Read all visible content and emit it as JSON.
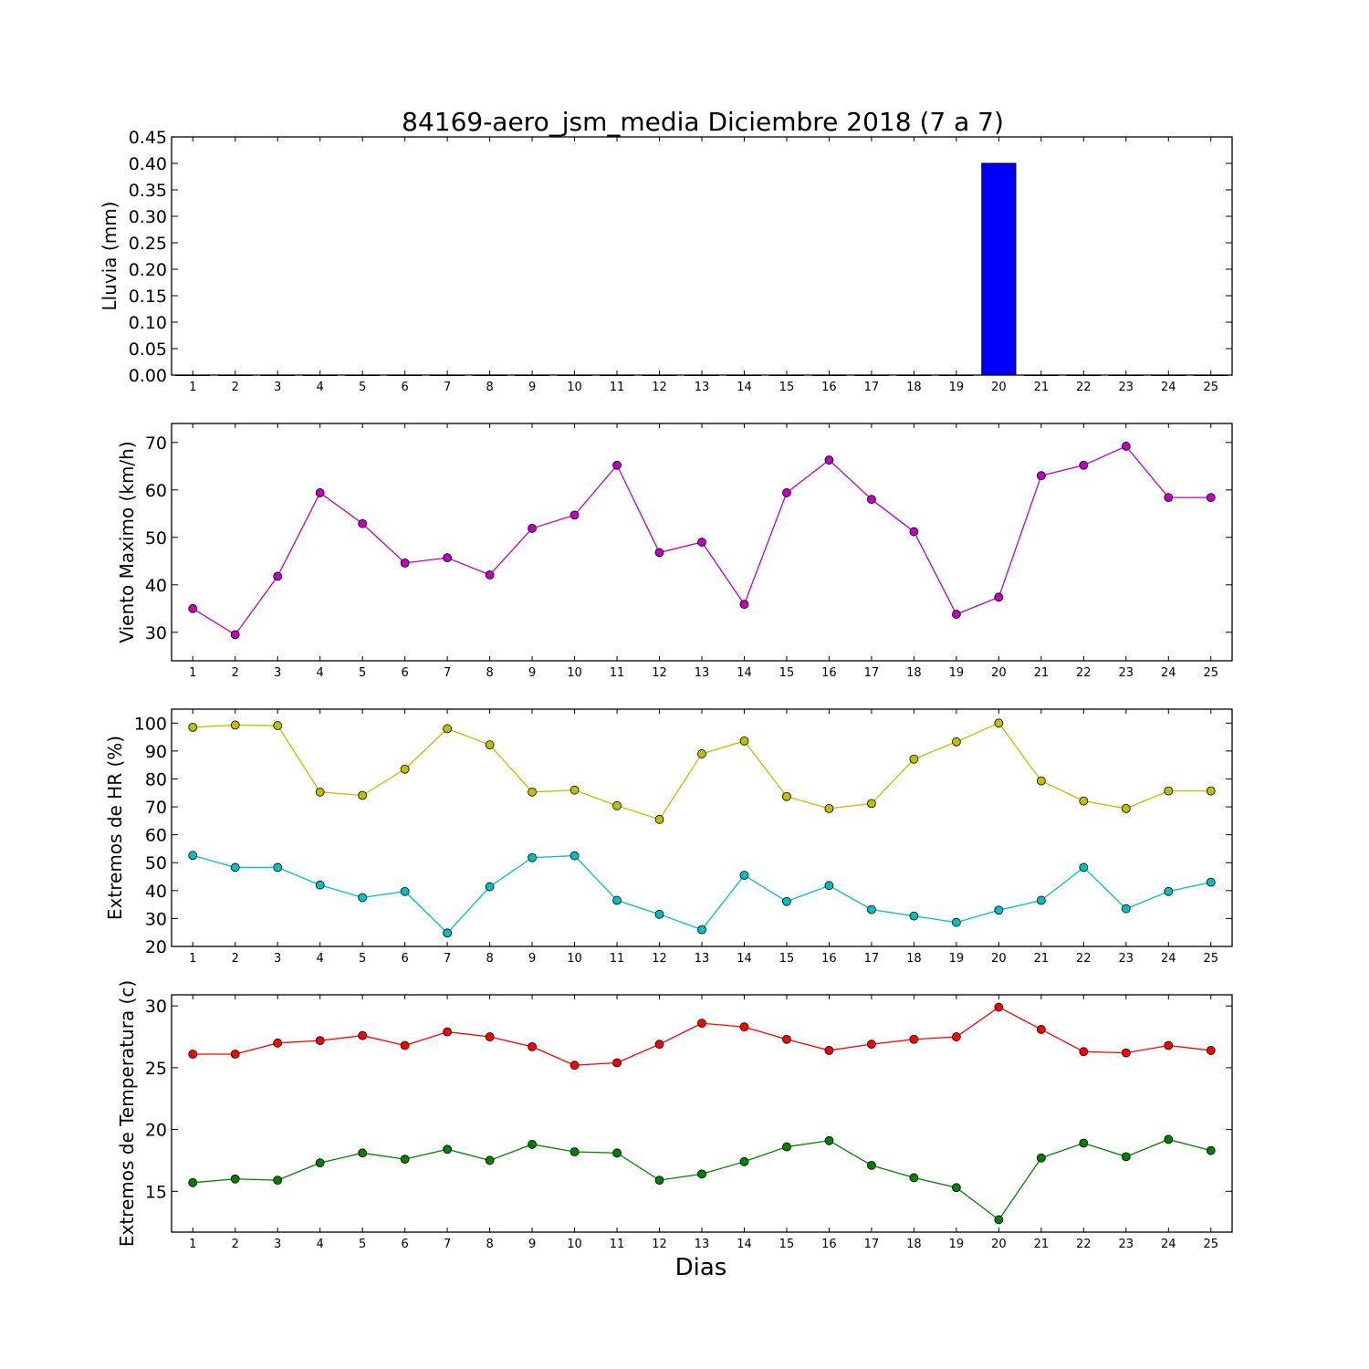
{
  "figure": {
    "title": "84169-aero_jsm_media Diciembre 2018  (7 a 7)",
    "xlabel": "Dias"
  },
  "chart_data": [
    {
      "type": "bar",
      "ylabel": "Lluvia (mm)",
      "x": [
        1,
        2,
        3,
        4,
        5,
        6,
        7,
        8,
        9,
        10,
        11,
        12,
        13,
        14,
        15,
        16,
        17,
        18,
        19,
        20,
        21,
        22,
        23,
        24,
        25
      ],
      "xlim": [
        0.5,
        25.5
      ],
      "ylim": [
        0,
        0.45
      ],
      "yticks": [
        "0.00",
        "0.05",
        "0.10",
        "0.15",
        "0.20",
        "0.25",
        "0.30",
        "0.35",
        "0.40",
        "0.45"
      ],
      "series": [
        {
          "color": "#0000ff",
          "values": [
            0,
            0,
            0,
            0,
            0,
            0,
            0,
            0,
            0,
            0,
            0,
            0,
            0,
            0,
            0,
            0,
            0,
            0,
            0,
            0.4,
            0,
            0,
            0,
            0,
            0
          ]
        }
      ]
    },
    {
      "type": "line",
      "ylabel": "Viento Maximo (km/h)",
      "x": [
        1,
        2,
        3,
        4,
        5,
        6,
        7,
        8,
        9,
        10,
        11,
        12,
        13,
        14,
        15,
        16,
        17,
        18,
        19,
        20,
        21,
        22,
        23,
        24,
        25
      ],
      "xlim": [
        0.5,
        25.5
      ],
      "ylim": [
        24,
        74
      ],
      "yticks": [
        "30",
        "40",
        "50",
        "60",
        "70"
      ],
      "series": [
        {
          "color": "#bf00bf",
          "values": [
            35,
            29.5,
            41.8,
            59.4,
            52.9,
            44.6,
            45.7,
            42.1,
            51.9,
            54.7,
            65.2,
            46.8,
            49,
            35.9,
            59.4,
            66.3,
            58,
            51.2,
            33.8,
            37.4,
            63,
            65.2,
            69.2,
            58.4,
            58.4
          ]
        }
      ]
    },
    {
      "type": "line",
      "ylabel": "Extremos de HR (%)",
      "x": [
        1,
        2,
        3,
        4,
        5,
        6,
        7,
        8,
        9,
        10,
        11,
        12,
        13,
        14,
        15,
        16,
        17,
        18,
        19,
        20,
        21,
        22,
        23,
        24,
        25
      ],
      "xlim": [
        0.5,
        25.5
      ],
      "ylim": [
        20,
        105
      ],
      "yticks": [
        "20",
        "30",
        "40",
        "50",
        "60",
        "70",
        "80",
        "90",
        "100"
      ],
      "series": [
        {
          "color": "#bfbf00",
          "values": [
            98.5,
            99.3,
            99.1,
            75.3,
            74.1,
            83.5,
            98,
            92.2,
            75.3,
            76,
            70.4,
            65.5,
            89,
            93.6,
            73.7,
            69.4,
            71.2,
            87.1,
            93.3,
            100,
            79.3,
            72.1,
            69.4,
            75.7,
            75.7
          ]
        },
        {
          "color": "#00bfbf",
          "values": [
            52.6,
            48.3,
            48.3,
            42,
            37.5,
            39.7,
            24.8,
            41.4,
            51.8,
            52.5,
            36.5,
            31.5,
            26,
            45.5,
            36.1,
            41.8,
            33.2,
            30.9,
            28.6,
            33,
            36.5,
            48.3,
            33.5,
            39.7,
            43
          ]
        }
      ]
    },
    {
      "type": "line",
      "ylabel": "Extremos de Temperatura (c)",
      "x": [
        1,
        2,
        3,
        4,
        5,
        6,
        7,
        8,
        9,
        10,
        11,
        12,
        13,
        14,
        15,
        16,
        17,
        18,
        19,
        20,
        21,
        22,
        23,
        24,
        25
      ],
      "xlim": [
        0.5,
        25.5
      ],
      "ylim": [
        11.7,
        30.9
      ],
      "yticks": [
        "15",
        "20",
        "25",
        "30"
      ],
      "series": [
        {
          "color": "#ff0000",
          "values": [
            26.1,
            26.1,
            27,
            27.2,
            27.6,
            26.8,
            27.9,
            27.5,
            26.7,
            25.2,
            25.4,
            26.9,
            28.6,
            28.3,
            27.3,
            26.4,
            26.9,
            27.3,
            27.5,
            29.9,
            28.1,
            26.3,
            26.2,
            26.8,
            26.4
          ]
        },
        {
          "color": "#008000",
          "values": [
            15.7,
            16,
            15.9,
            17.3,
            18.1,
            17.6,
            18.4,
            17.5,
            18.8,
            18.2,
            18.1,
            15.9,
            16.4,
            17.4,
            18.6,
            19.1,
            17.1,
            16.1,
            15.3,
            12.7,
            17.7,
            18.9,
            17.8,
            19.2,
            18.3
          ]
        }
      ]
    }
  ]
}
